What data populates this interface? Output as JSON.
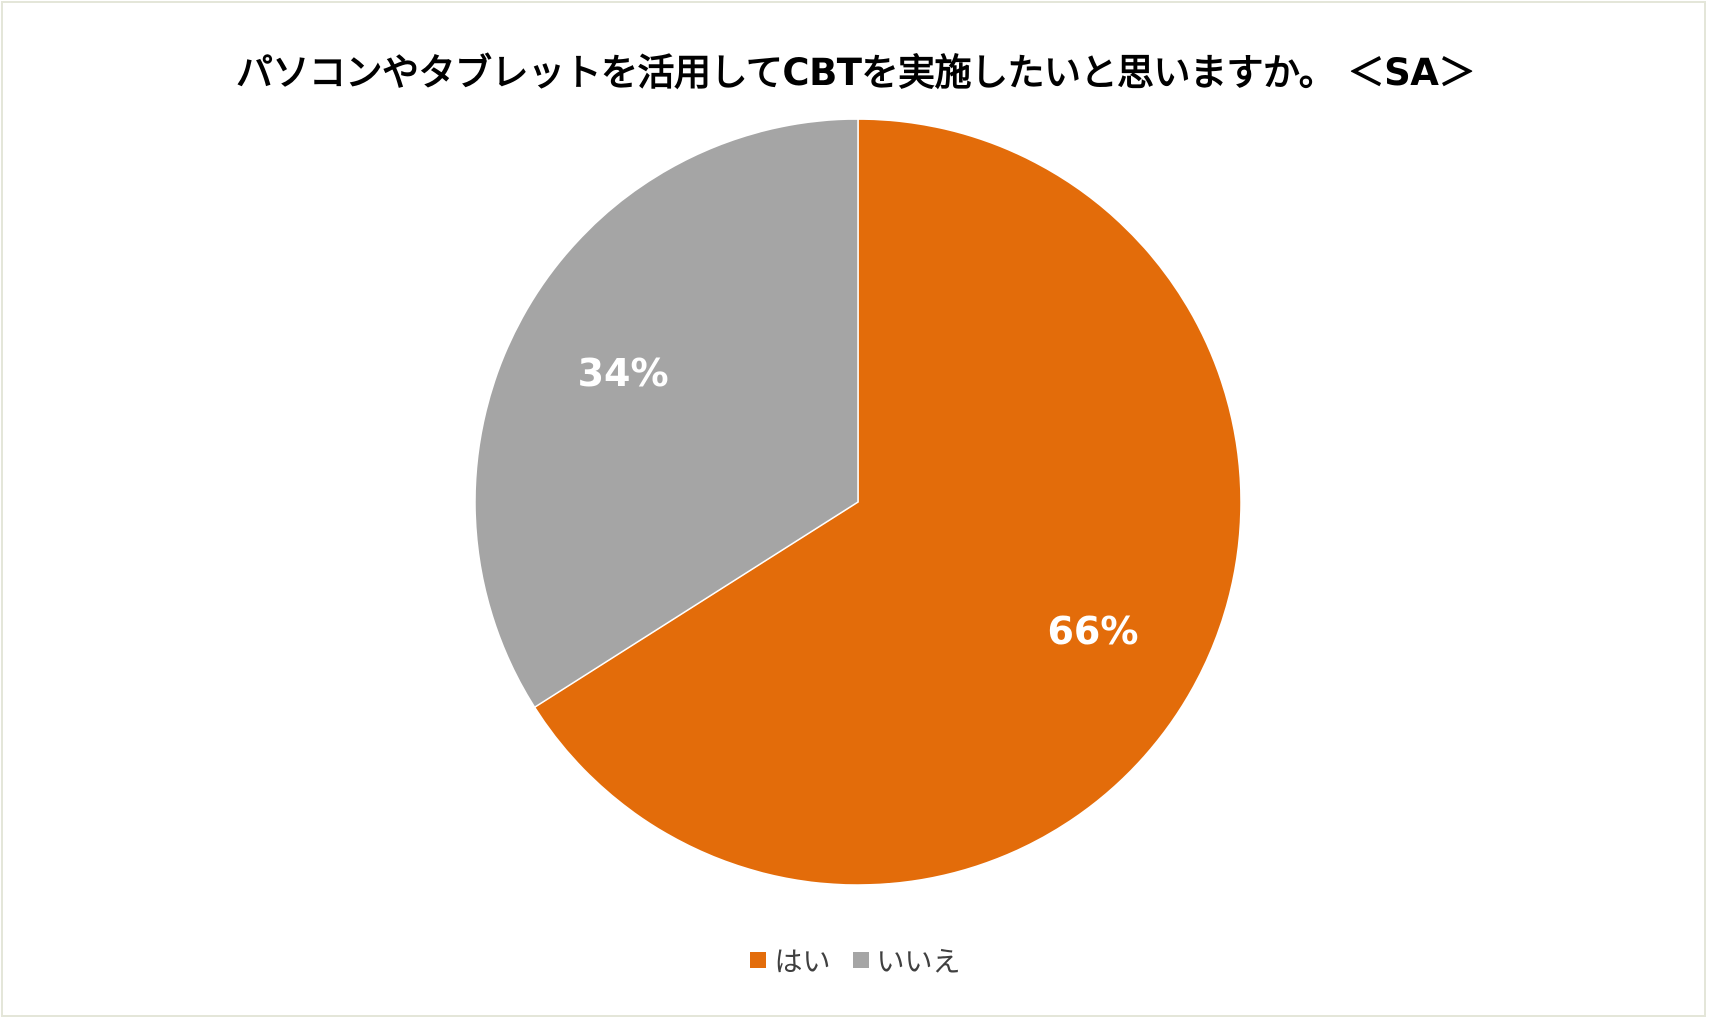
{
  "chart_data": {
    "type": "pie",
    "title": "パソコンやタブレットを活用してCBTを実施したいと思いますか。 ＜SA＞",
    "categories": [
      "はい",
      "いいえ"
    ],
    "values": [
      66,
      34
    ],
    "data_labels": [
      "66%",
      "34%"
    ],
    "colors": [
      "#e36c0a",
      "#a5a5a5"
    ],
    "legend_position": "bottom"
  }
}
